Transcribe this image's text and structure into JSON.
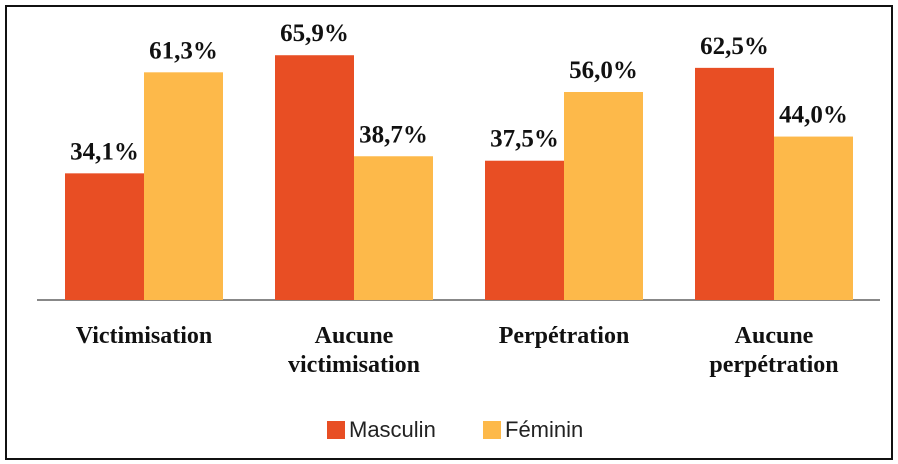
{
  "chart_data": {
    "type": "bar",
    "categories": [
      "Victimisation",
      "Aucune victimisation",
      "Perpétration",
      "Aucune perpétration"
    ],
    "series": [
      {
        "name": "Masculin",
        "color": "#e84e24",
        "values": [
          34.1,
          65.9,
          37.5,
          62.5
        ],
        "value_labels": [
          "34,1%",
          "65,9%",
          "37,5%",
          "62,5%"
        ]
      },
      {
        "name": "Féminin",
        "color": "#fdb94a",
        "values": [
          61.3,
          38.7,
          56.0,
          44.0
        ],
        "value_labels": [
          "61,3%",
          "38,7%",
          "56,0%",
          "44,0%"
        ]
      }
    ],
    "ylim": [
      0,
      70
    ],
    "legend": "bottom"
  }
}
